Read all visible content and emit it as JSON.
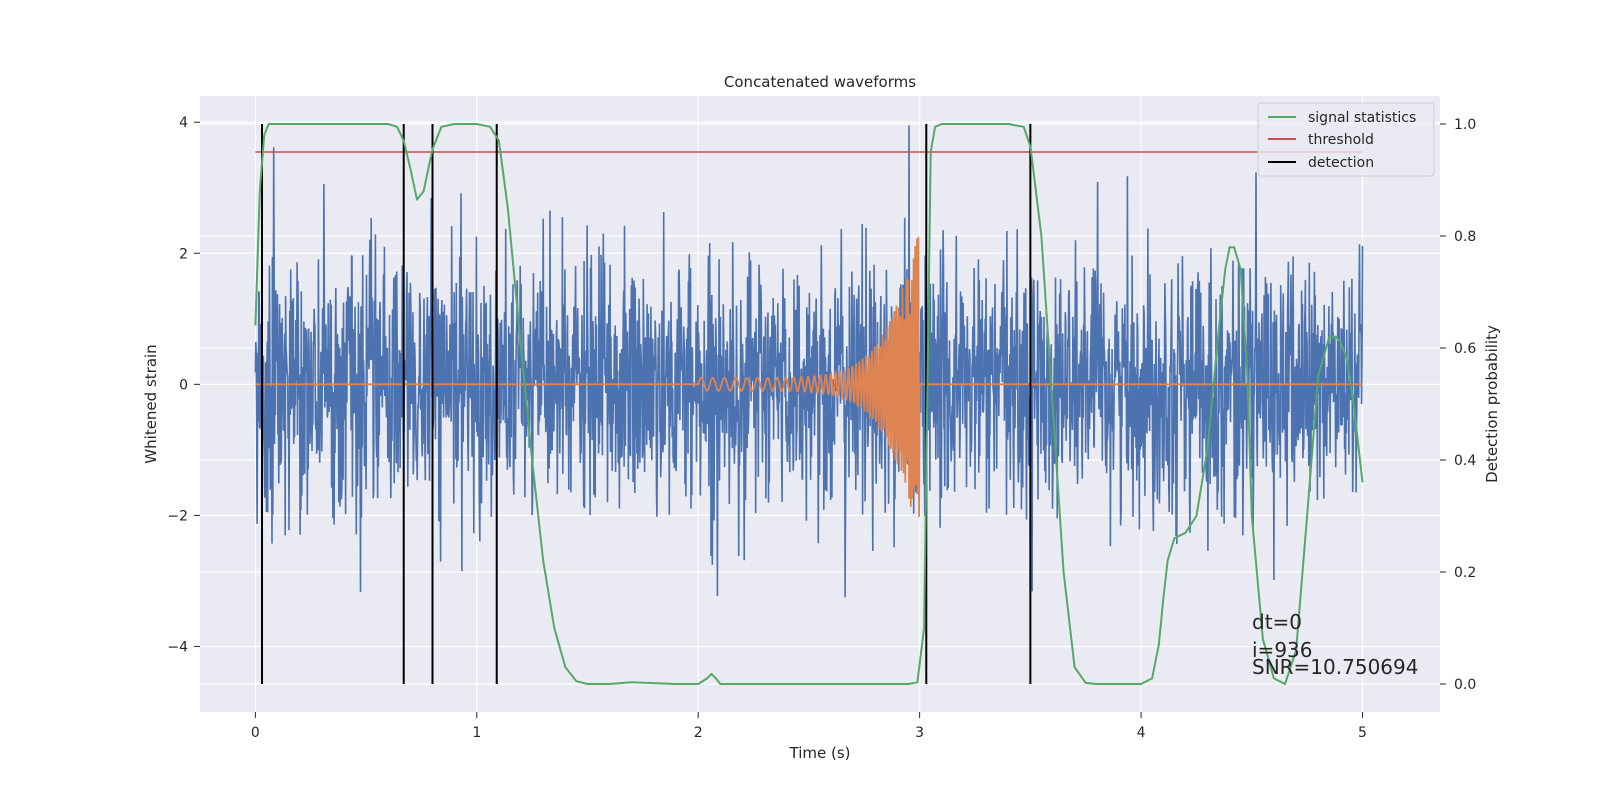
{
  "chart_data": {
    "type": "line",
    "title": "Concatenated waveforms",
    "xlabel": "Time (s)",
    "ylabel": "Whitened strain",
    "y2label": "Detection probability",
    "xlim": [
      -0.25,
      5.35
    ],
    "ylim": [
      -5.0,
      4.4
    ],
    "y2lim": [
      -0.05,
      1.05
    ],
    "x_ticks": [
      0,
      1,
      2,
      3,
      4,
      5
    ],
    "y_ticks": [
      -4,
      -2,
      0,
      2,
      4
    ],
    "y2_ticks": [
      0.0,
      0.2,
      0.4,
      0.6,
      0.8,
      1.0
    ],
    "grid": true,
    "legend_position": "top-right",
    "colors": {
      "strain": "#4c72b0",
      "template": "#dd8452",
      "signal_statistics": "#55a868",
      "threshold": "#c44e52",
      "detection": "#000000",
      "background": "#eaeaf2",
      "grid": "#ffffff"
    },
    "series": [
      {
        "name": "signal statistics",
        "axis": "right",
        "x": [
          0.0,
          0.02,
          0.04,
          0.06,
          0.1,
          0.2,
          0.4,
          0.6,
          0.64,
          0.67,
          0.7,
          0.73,
          0.76,
          0.8,
          0.84,
          0.9,
          1.0,
          1.06,
          1.1,
          1.14,
          1.2,
          1.25,
          1.3,
          1.35,
          1.4,
          1.45,
          1.5,
          1.6,
          1.7,
          1.9,
          2.0,
          2.04,
          2.06,
          2.08,
          2.1,
          2.2,
          2.5,
          2.8,
          2.95,
          2.99,
          3.02,
          3.05,
          3.07,
          3.1,
          3.2,
          3.4,
          3.47,
          3.5,
          3.55,
          3.6,
          3.65,
          3.7,
          3.75,
          3.8,
          4.0,
          4.05,
          4.08,
          4.1,
          4.12,
          4.15,
          4.2,
          4.25,
          4.3,
          4.35,
          4.38,
          4.4,
          4.42,
          4.45,
          4.48,
          4.5,
          4.55,
          4.6,
          4.65,
          4.7,
          4.75,
          4.8,
          4.85,
          4.88,
          4.9,
          4.93,
          4.96,
          5.0
        ],
        "y": [
          0.64,
          0.88,
          0.98,
          1.0,
          1.0,
          1.0,
          1.0,
          1.0,
          0.995,
          0.97,
          0.92,
          0.865,
          0.88,
          0.955,
          0.995,
          1.0,
          1.0,
          0.995,
          0.97,
          0.85,
          0.6,
          0.4,
          0.22,
          0.1,
          0.03,
          0.005,
          0.0,
          0.0,
          0.003,
          0.0,
          0.0,
          0.01,
          0.018,
          0.01,
          0.0,
          0.0,
          0.0,
          0.0,
          0.0,
          0.003,
          0.1,
          0.95,
          0.995,
          1.0,
          1.0,
          1.0,
          0.995,
          0.96,
          0.8,
          0.5,
          0.2,
          0.03,
          0.002,
          0.0,
          0.0,
          0.01,
          0.07,
          0.15,
          0.22,
          0.26,
          0.27,
          0.3,
          0.42,
          0.63,
          0.74,
          0.78,
          0.78,
          0.74,
          0.55,
          0.3,
          0.08,
          0.01,
          0.0,
          0.06,
          0.3,
          0.55,
          0.62,
          0.62,
          0.61,
          0.58,
          0.5,
          0.36
        ]
      },
      {
        "name": "threshold",
        "axis": "right",
        "x": [
          0.0,
          5.0
        ],
        "y": [
          0.95,
          0.95
        ]
      },
      {
        "name": "detection",
        "axis": "right",
        "type": "vlines",
        "x": [
          0.03,
          0.67,
          0.8,
          1.09,
          3.03,
          3.5
        ]
      }
    ],
    "annotations": [
      "dt=0",
      "i=936",
      "SNR=10.750694"
    ]
  }
}
